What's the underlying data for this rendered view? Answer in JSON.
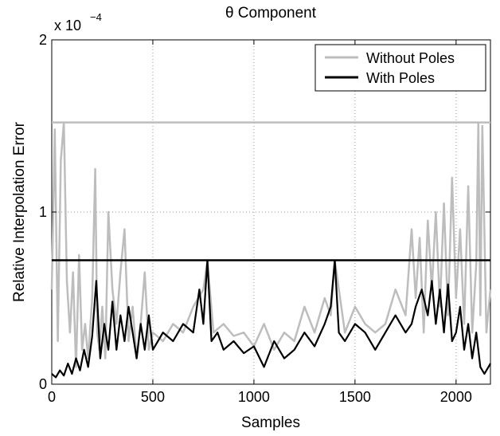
{
  "chart_data": {
    "type": "line",
    "title": "θ Component",
    "xlabel": "Samples",
    "ylabel": "Relative Interpolation Error",
    "y_scale_multiplier": "x 10",
    "y_scale_exponent": "−4",
    "xlim": [
      0,
      2170
    ],
    "ylim": [
      0,
      2
    ],
    "xticks": [
      0,
      500,
      1000,
      1500,
      2000
    ],
    "yticks": [
      0,
      1,
      2
    ],
    "xtick_labels": [
      "0",
      "500",
      "1000",
      "1500",
      "2000"
    ],
    "ytick_labels": [
      "0",
      "1",
      "2"
    ],
    "grid": true,
    "legend_position": "top-right",
    "series": [
      {
        "name": "Without Poles",
        "color": "#bdbdbd",
        "max_line": 1.52,
        "x": [
          0,
          15,
          30,
          45,
          60,
          75,
          90,
          105,
          120,
          135,
          150,
          165,
          180,
          200,
          215,
          225,
          235,
          250,
          265,
          280,
          300,
          320,
          340,
          360,
          380,
          400,
          420,
          440,
          460,
          480,
          500,
          550,
          600,
          650,
          700,
          750,
          770,
          800,
          850,
          900,
          950,
          1000,
          1050,
          1100,
          1150,
          1200,
          1250,
          1300,
          1350,
          1380,
          1400,
          1450,
          1500,
          1550,
          1600,
          1650,
          1700,
          1750,
          1780,
          1800,
          1820,
          1840,
          1860,
          1880,
          1900,
          1920,
          1940,
          1960,
          1980,
          2000,
          2020,
          2040,
          2060,
          2080,
          2100,
          2110,
          2120,
          2130,
          2150,
          2170
        ],
        "y": [
          0.55,
          1.48,
          0.25,
          1.3,
          1.52,
          0.6,
          0.3,
          0.65,
          0.1,
          0.75,
          0.2,
          0.35,
          0.15,
          0.5,
          1.25,
          0.3,
          0.2,
          0.45,
          0.15,
          1.0,
          0.55,
          0.35,
          0.65,
          0.9,
          0.25,
          0.45,
          0.15,
          0.35,
          0.65,
          0.2,
          0.3,
          0.25,
          0.35,
          0.3,
          0.45,
          0.55,
          0.72,
          0.3,
          0.35,
          0.28,
          0.3,
          0.22,
          0.35,
          0.2,
          0.3,
          0.25,
          0.45,
          0.3,
          0.5,
          0.4,
          0.72,
          0.3,
          0.45,
          0.35,
          0.3,
          0.35,
          0.55,
          0.4,
          0.9,
          0.5,
          0.85,
          0.3,
          0.95,
          0.55,
          1.0,
          0.45,
          1.05,
          0.4,
          1.2,
          0.5,
          0.9,
          0.35,
          1.15,
          0.3,
          0.7,
          1.52,
          0.4,
          1.5,
          0.3,
          0.55
        ]
      },
      {
        "name": "With Poles",
        "color": "#000000",
        "max_line": 0.72,
        "x": [
          0,
          20,
          40,
          60,
          80,
          100,
          120,
          140,
          160,
          180,
          200,
          220,
          240,
          260,
          280,
          300,
          320,
          340,
          360,
          380,
          400,
          420,
          440,
          460,
          480,
          500,
          550,
          600,
          650,
          700,
          730,
          750,
          770,
          790,
          820,
          850,
          900,
          950,
          1000,
          1050,
          1100,
          1150,
          1200,
          1250,
          1300,
          1350,
          1380,
          1400,
          1420,
          1450,
          1500,
          1550,
          1600,
          1650,
          1700,
          1750,
          1780,
          1800,
          1830,
          1860,
          1880,
          1900,
          1920,
          1940,
          1960,
          1980,
          2000,
          2020,
          2040,
          2060,
          2080,
          2100,
          2120,
          2140,
          2160,
          2170
        ],
        "y": [
          0.06,
          0.04,
          0.08,
          0.05,
          0.12,
          0.06,
          0.15,
          0.08,
          0.2,
          0.1,
          0.28,
          0.6,
          0.15,
          0.35,
          0.2,
          0.48,
          0.2,
          0.4,
          0.25,
          0.45,
          0.3,
          0.15,
          0.35,
          0.2,
          0.4,
          0.2,
          0.3,
          0.25,
          0.35,
          0.3,
          0.55,
          0.35,
          0.72,
          0.25,
          0.3,
          0.2,
          0.25,
          0.18,
          0.22,
          0.1,
          0.25,
          0.15,
          0.2,
          0.3,
          0.22,
          0.35,
          0.45,
          0.72,
          0.3,
          0.25,
          0.35,
          0.3,
          0.2,
          0.3,
          0.4,
          0.3,
          0.35,
          0.45,
          0.55,
          0.4,
          0.6,
          0.35,
          0.55,
          0.3,
          0.58,
          0.25,
          0.3,
          0.45,
          0.2,
          0.35,
          0.15,
          0.3,
          0.1,
          0.06,
          0.1,
          0.12
        ]
      }
    ]
  }
}
